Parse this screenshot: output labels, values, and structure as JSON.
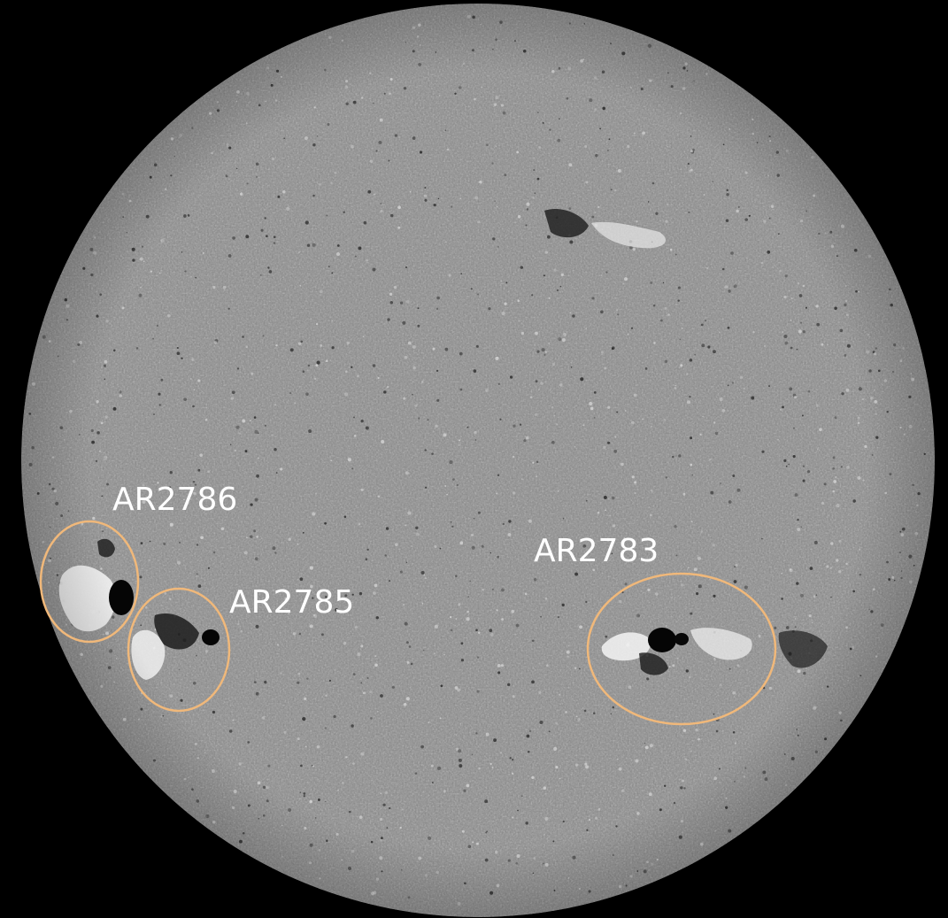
{
  "image": {
    "background_color": "#000000",
    "disk_base_color": "#8a8a8a",
    "positive_polarity_color": "#ffffff",
    "negative_polarity_color": "#000000",
    "annotation_color": "#f0b87a",
    "label_color": "#ffffff"
  },
  "active_regions": [
    {
      "label": "AR2786"
    },
    {
      "label": "AR2785"
    },
    {
      "label": "AR2783"
    }
  ]
}
